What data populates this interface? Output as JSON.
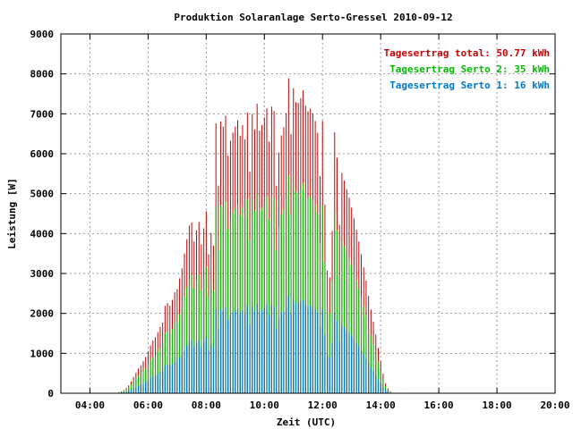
{
  "chart_data": {
    "type": "bar",
    "title": "Produktion Solaranlage Serto-Gressel 2010-09-12",
    "xlabel": "Zeit (UTC)",
    "ylabel": "Leistung [W]",
    "xlim": [
      3.0,
      20.0
    ],
    "ylim": [
      0,
      9000
    ],
    "x_ticks": [
      "04:00",
      "06:00",
      "08:00",
      "10:00",
      "12:00",
      "14:00",
      "16:00",
      "18:00",
      "20:00"
    ],
    "y_ticks": [
      "0",
      "1000",
      "2000",
      "3000",
      "4000",
      "5000",
      "6000",
      "7000",
      "8000",
      "9000"
    ],
    "grid": true,
    "legend_position": "top-right",
    "colors": {
      "total": "#cc0000",
      "serto2": "#00bb00",
      "serto1": "#0077cc"
    },
    "legend": [
      {
        "key": "total",
        "label": "Tagesertrag total: 50.77 kWh"
      },
      {
        "key": "serto2",
        "label": "Tagesertrag Serto 2: 35 kWh"
      },
      {
        "key": "serto1",
        "label": "Tagesertrag Serto 1: 16 kWh"
      }
    ],
    "time_start": "05:00",
    "bar_interval_minutes": 5,
    "series": [
      {
        "name": "total",
        "values": [
          30,
          50,
          80,
          130,
          200,
          300,
          410,
          520,
          620,
          700,
          800,
          910,
          1050,
          1200,
          1320,
          1400,
          1530,
          1660,
          1770,
          2190,
          2260,
          2190,
          2340,
          2530,
          2610,
          2880,
          3130,
          3500,
          3860,
          4200,
          4280,
          3800,
          4080,
          4290,
          3730,
          4130,
          4560,
          3480,
          4020,
          3700,
          6760,
          5200,
          6810,
          6680,
          6950,
          5950,
          6330,
          6530,
          6680,
          6840,
          6450,
          6720,
          6360,
          7030,
          5550,
          7000,
          6610,
          7250,
          6580,
          6720,
          6910,
          7140,
          6300,
          7180,
          7070,
          5200,
          6030,
          6460,
          6660,
          7020,
          7890,
          6490,
          7640,
          7290,
          7280,
          7390,
          7590,
          7200,
          7060,
          7130,
          7010,
          6820,
          6520,
          5440,
          6820,
          4730,
          3070,
          2900,
          4070,
          6540,
          5900,
          4220,
          5520,
          5330,
          5110,
          4900,
          4650,
          4380,
          4100,
          3800,
          3480,
          3150,
          2820,
          2440,
          2100,
          1790,
          1470,
          1130,
          810,
          490,
          250,
          120,
          50
        ]
      },
      {
        "name": "serto2",
        "values": [
          20,
          35,
          55,
          90,
          140,
          210,
          290,
          360,
          430,
          490,
          560,
          630,
          720,
          820,
          900,
          960,
          1050,
          1140,
          1220,
          1500,
          1550,
          1500,
          1610,
          1750,
          1800,
          1990,
          2170,
          2420,
          2670,
          2900,
          2960,
          2630,
          2820,
          2970,
          2580,
          2850,
          3160,
          2400,
          2780,
          2560,
          4670,
          3590,
          4710,
          4620,
          4800,
          4110,
          4380,
          4510,
          4620,
          4730,
          4460,
          4640,
          4400,
          4860,
          3830,
          4840,
          4570,
          5010,
          4550,
          4640,
          4780,
          4930,
          4350,
          4960,
          4890,
          3590,
          4170,
          4470,
          4600,
          4850,
          5450,
          4490,
          5280,
          5040,
          5030,
          5110,
          5250,
          4980,
          4880,
          4930,
          4850,
          4710,
          4510,
          3760,
          4710,
          3270,
          2120,
          2000,
          2810,
          4520,
          4080,
          2920,
          3810,
          3680,
          3530,
          3380,
          3210,
          3020,
          2830,
          2620,
          2400,
          2170,
          1950,
          1680,
          1450,
          1230,
          1010,
          780,
          560,
          340,
          170,
          80,
          35
        ]
      },
      {
        "name": "serto1",
        "values": [
          10,
          15,
          25,
          40,
          60,
          90,
          120,
          160,
          190,
          210,
          240,
          280,
          330,
          380,
          420,
          440,
          480,
          520,
          550,
          690,
          710,
          690,
          730,
          780,
          810,
          890,
          960,
          1080,
          1190,
          1300,
          1320,
          1170,
          1260,
          1320,
          1150,
          1280,
          1400,
          1080,
          1240,
          1140,
          2090,
          1610,
          2100,
          2060,
          2150,
          1840,
          1950,
          2020,
          2060,
          2110,
          1990,
          2080,
          1960,
          2170,
          1720,
          2160,
          2040,
          2240,
          2030,
          2080,
          2130,
          2210,
          1950,
          2220,
          2180,
          1610,
          1860,
          2000,
          2060,
          2170,
          2440,
          2000,
          2360,
          2250,
          2250,
          2280,
          2340,
          2220,
          2180,
          2200,
          2160,
          2110,
          2010,
          1680,
          2110,
          1460,
          950,
          900,
          1260,
          2020,
          1820,
          1300,
          1710,
          1650,
          1580,
          1520,
          1440,
          1360,
          1270,
          1180,
          1080,
          980,
          870,
          760,
          650,
          560,
          460,
          350,
          250,
          150,
          80,
          40,
          15
        ]
      }
    ]
  }
}
